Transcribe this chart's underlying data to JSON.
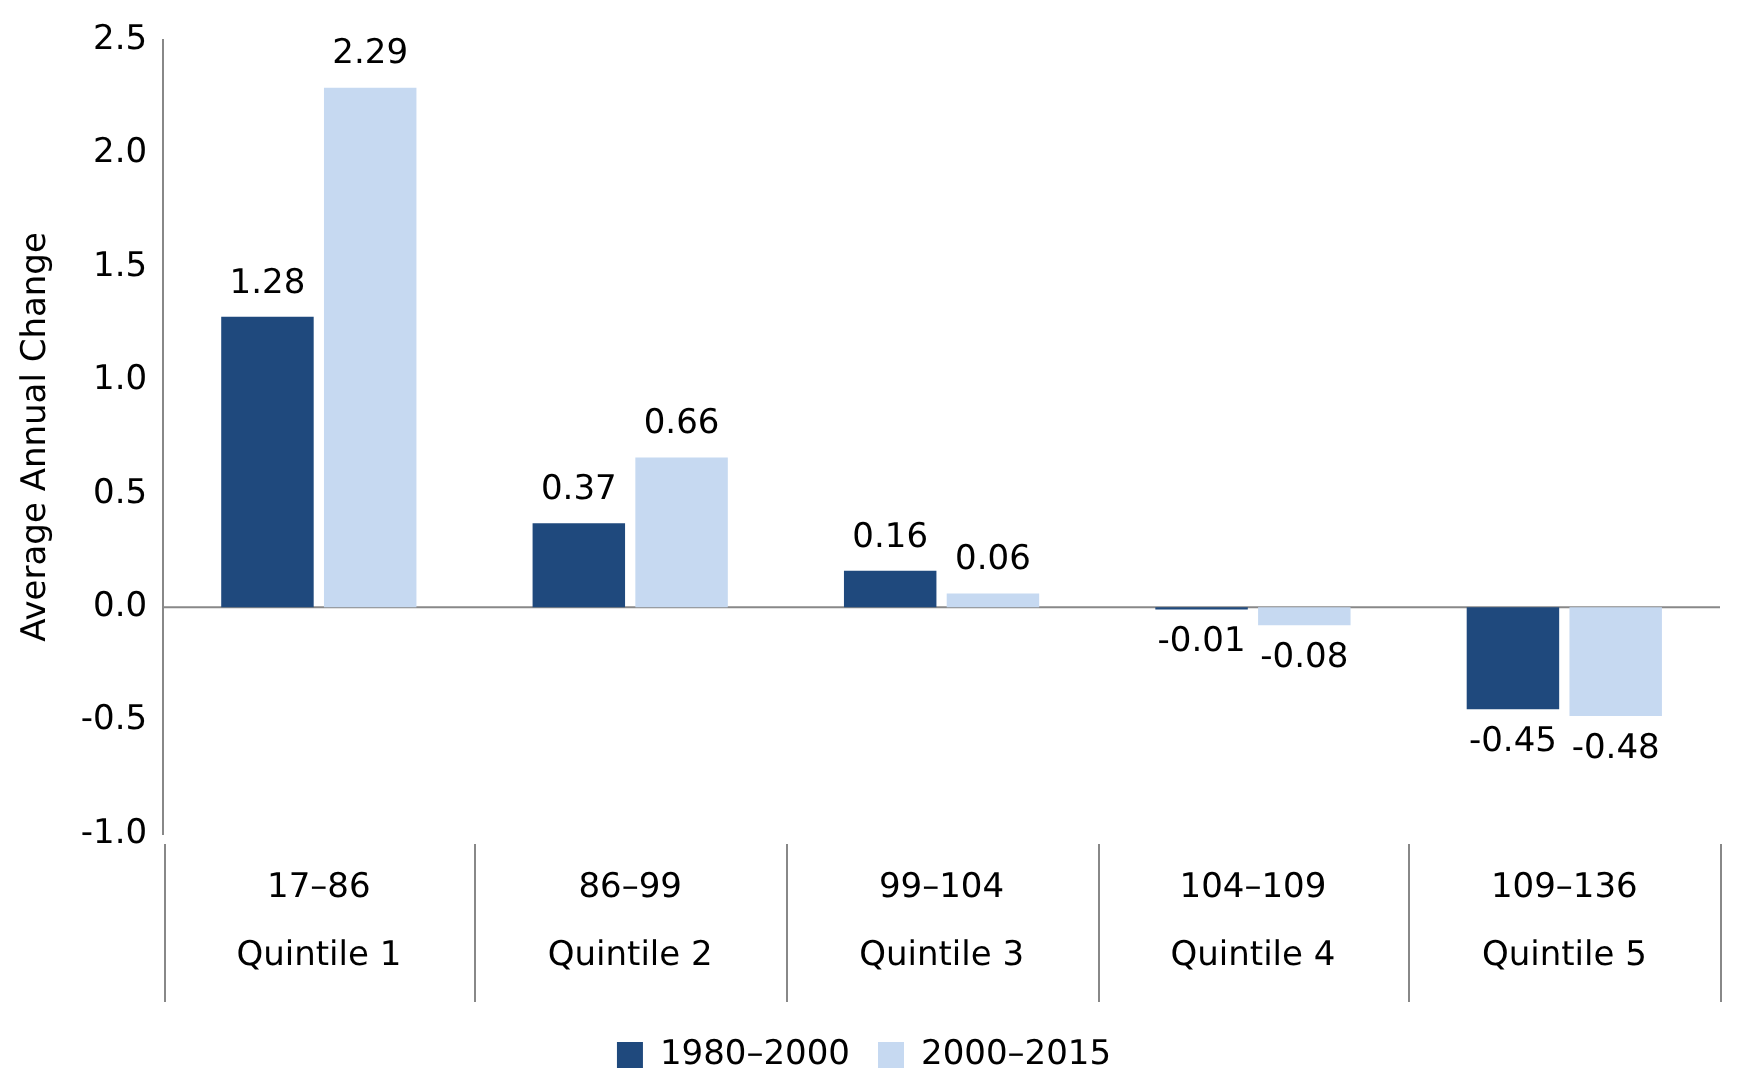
{
  "chart_data": {
    "type": "bar",
    "ylabel": "Average Annual Change",
    "categories": [
      "17–86\nQuintile 1",
      "86–99\nQuintile 2",
      "99–104\nQuintile 3",
      "104–109\nQuintile 4",
      "109–136\nQuintile 5"
    ],
    "series": [
      {
        "name": "1980–2000",
        "color": "#1f497d",
        "values": [
          1.28,
          0.37,
          0.16,
          -0.01,
          -0.45
        ]
      },
      {
        "name": "2000–2015",
        "color": "#c6d9f1",
        "values": [
          2.29,
          0.66,
          0.06,
          -0.08,
          -0.48
        ]
      }
    ],
    "ylim": [
      -1.0,
      2.5
    ],
    "yticks": [
      {
        "value": -1,
        "label": "-1.0"
      },
      {
        "value": -0.5,
        "label": "-0.5"
      },
      {
        "value": 0,
        "label": "0.0"
      },
      {
        "value": 0.5,
        "label": "0.5"
      },
      {
        "value": 1,
        "label": "1.0"
      },
      {
        "value": 1.5,
        "label": "1.5"
      },
      {
        "value": 2,
        "label": "2.0"
      },
      {
        "value": 2.5,
        "label": "2.5"
      }
    ],
    "ref_lines": [
      {
        "axis": "y",
        "value": 0,
        "color": "#888888"
      }
    ],
    "grid": false,
    "legend": "bottom",
    "data_labels": true
  }
}
